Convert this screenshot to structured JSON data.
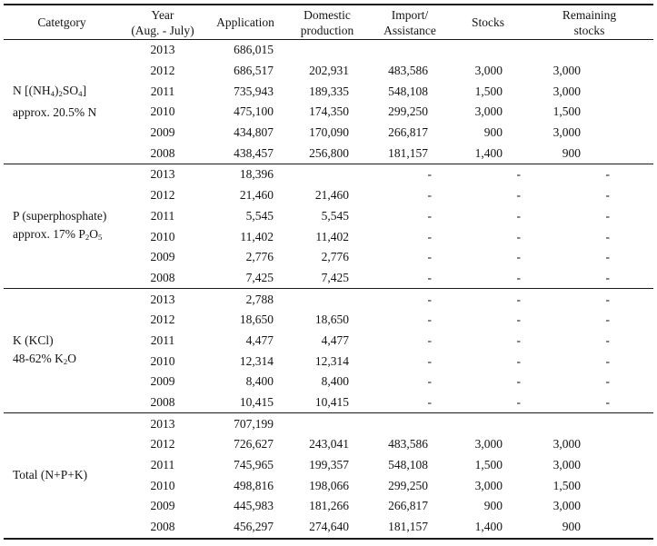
{
  "page": {
    "background_color": "#ffffff",
    "text_color": "#141414",
    "rule_color": "#1a1a1a"
  },
  "table": {
    "columns": [
      {
        "id": "category",
        "label_lines": [
          "Catetgory"
        ]
      },
      {
        "id": "year",
        "label_lines": [
          "Year",
          "(Aug. - July)"
        ]
      },
      {
        "id": "application",
        "label_lines": [
          "Application"
        ]
      },
      {
        "id": "domestic",
        "label_lines": [
          "Domestic",
          "production"
        ]
      },
      {
        "id": "import",
        "label_lines": [
          "Import/",
          "Assistance"
        ]
      },
      {
        "id": "stocks",
        "label_lines": [
          "Stocks"
        ]
      },
      {
        "id": "remaining",
        "label_lines": [
          "Remaining",
          "stocks"
        ]
      }
    ],
    "groups": [
      {
        "id": "n",
        "category_lines": [
          [
            {
              "t": "N [(NH"
            },
            {
              "t": "4",
              "sub": true
            },
            {
              "t": ")"
            },
            {
              "t": "2",
              "sub": true
            },
            {
              "t": "SO"
            },
            {
              "t": "4",
              "sub": true
            },
            {
              "t": "]"
            }
          ],
          [
            {
              "t": "approx. 20.5% N"
            }
          ]
        ],
        "rows": [
          {
            "year": "2013",
            "application": "686,015",
            "domestic": "",
            "import": "",
            "stocks": "",
            "remaining": ""
          },
          {
            "year": "2012",
            "application": "686,517",
            "domestic": "202,931",
            "import": "483,586",
            "stocks": "3,000",
            "remaining": "3,000"
          },
          {
            "year": "2011",
            "application": "735,943",
            "domestic": "189,335",
            "import": "548,108",
            "stocks": "1,500",
            "remaining": "3,000"
          },
          {
            "year": "2010",
            "application": "475,100",
            "domestic": "174,350",
            "import": "299,250",
            "stocks": "3,000",
            "remaining": "1,500"
          },
          {
            "year": "2009",
            "application": "434,807",
            "domestic": "170,090",
            "import": "266,817",
            "stocks": "900",
            "remaining": "3,000"
          },
          {
            "year": "2008",
            "application": "438,457",
            "domestic": "256,800",
            "import": "181,157",
            "stocks": "1,400",
            "remaining": "900"
          }
        ]
      },
      {
        "id": "p",
        "category_lines": [
          [
            {
              "t": "P (superphosphate)"
            }
          ],
          [
            {
              "t": "approx. 17% P"
            },
            {
              "t": "2",
              "sub": true
            },
            {
              "t": "O"
            },
            {
              "t": "5",
              "sub": true
            }
          ]
        ],
        "rows": [
          {
            "year": "2013",
            "application": "18,396",
            "domestic": "",
            "import": "-",
            "stocks": "-",
            "remaining": "-"
          },
          {
            "year": "2012",
            "application": "21,460",
            "domestic": "21,460",
            "import": "-",
            "stocks": "-",
            "remaining": "-"
          },
          {
            "year": "2011",
            "application": "5,545",
            "domestic": "5,545",
            "import": "-",
            "stocks": "-",
            "remaining": "-"
          },
          {
            "year": "2010",
            "application": "11,402",
            "domestic": "11,402",
            "import": "-",
            "stocks": "-",
            "remaining": "-"
          },
          {
            "year": "2009",
            "application": "2,776",
            "domestic": "2,776",
            "import": "-",
            "stocks": "-",
            "remaining": "-"
          },
          {
            "year": "2008",
            "application": "7,425",
            "domestic": "7,425",
            "import": "-",
            "stocks": "-",
            "remaining": "-"
          }
        ]
      },
      {
        "id": "k",
        "category_lines": [
          [
            {
              "t": "K (KCl)"
            }
          ],
          [
            {
              "t": "48-62% K"
            },
            {
              "t": "2",
              "sub": true
            },
            {
              "t": "O"
            }
          ]
        ],
        "rows": [
          {
            "year": "2013",
            "application": "2,788",
            "domestic": "",
            "import": "-",
            "stocks": "-",
            "remaining": "-"
          },
          {
            "year": "2012",
            "application": "18,650",
            "domestic": "18,650",
            "import": "-",
            "stocks": "-",
            "remaining": "-"
          },
          {
            "year": "2011",
            "application": "4,477",
            "domestic": "4,477",
            "import": "-",
            "stocks": "-",
            "remaining": "-"
          },
          {
            "year": "2010",
            "application": "12,314",
            "domestic": "12,314",
            "import": "-",
            "stocks": "-",
            "remaining": "-"
          },
          {
            "year": "2009",
            "application": "8,400",
            "domestic": "8,400",
            "import": "-",
            "stocks": "-",
            "remaining": "-"
          },
          {
            "year": "2008",
            "application": "10,415",
            "domestic": "10,415",
            "import": "-",
            "stocks": "-",
            "remaining": "-"
          }
        ]
      },
      {
        "id": "total",
        "category_lines": [
          [
            {
              "t": "Total (N+P+K)"
            }
          ]
        ],
        "rows": [
          {
            "year": "2013",
            "application": "707,199",
            "domestic": "",
            "import": "",
            "stocks": "",
            "remaining": ""
          },
          {
            "year": "2012",
            "application": "726,627",
            "domestic": "243,041",
            "import": "483,586",
            "stocks": "3,000",
            "remaining": "3,000"
          },
          {
            "year": "2011",
            "application": "745,965",
            "domestic": "199,357",
            "import": "548,108",
            "stocks": "1,500",
            "remaining": "3,000"
          },
          {
            "year": "2010",
            "application": "498,816",
            "domestic": "198,066",
            "import": "299,250",
            "stocks": "3,000",
            "remaining": "1,500"
          },
          {
            "year": "2009",
            "application": "445,983",
            "domestic": "181,266",
            "import": "266,817",
            "stocks": "900",
            "remaining": "3,000"
          },
          {
            "year": "2008",
            "application": "456,297",
            "domestic": "274,640",
            "import": "181,157",
            "stocks": "1,400",
            "remaining": "900"
          }
        ]
      }
    ]
  }
}
